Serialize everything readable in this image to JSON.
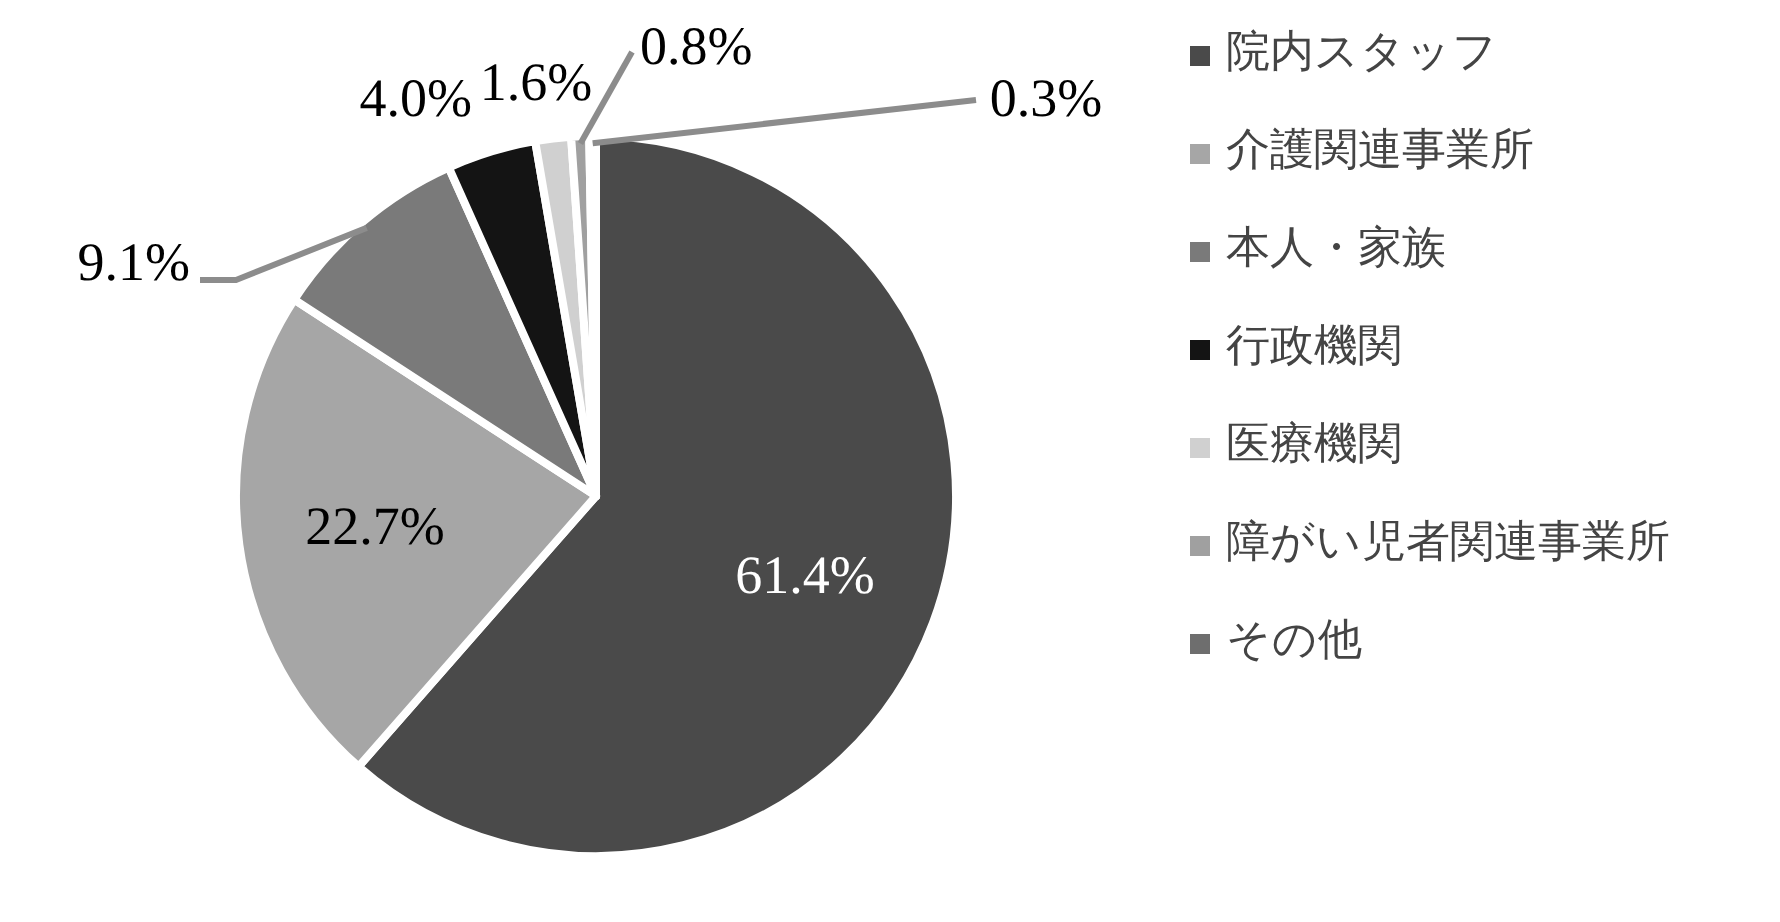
{
  "chart_data": {
    "type": "pie",
    "categories": [
      "院内スタッフ",
      "介護関連事業所",
      "本人・家族",
      "行政機関",
      "医療機関",
      "障がい児者関連事業所",
      "その他"
    ],
    "values": [
      61.4,
      22.7,
      9.1,
      4.0,
      1.6,
      0.8,
      0.3
    ],
    "value_labels": [
      "61.4%",
      "22.7%",
      "9.1%",
      "4.0%",
      "1.6%",
      "0.8%",
      "0.3%"
    ],
    "colors": [
      "#4a4a4a",
      "#a6a6a6",
      "#7a7a7a",
      "#141414",
      "#d0d0d0",
      "#a0a0a0",
      "#6e6e6e"
    ],
    "legend": "right"
  }
}
